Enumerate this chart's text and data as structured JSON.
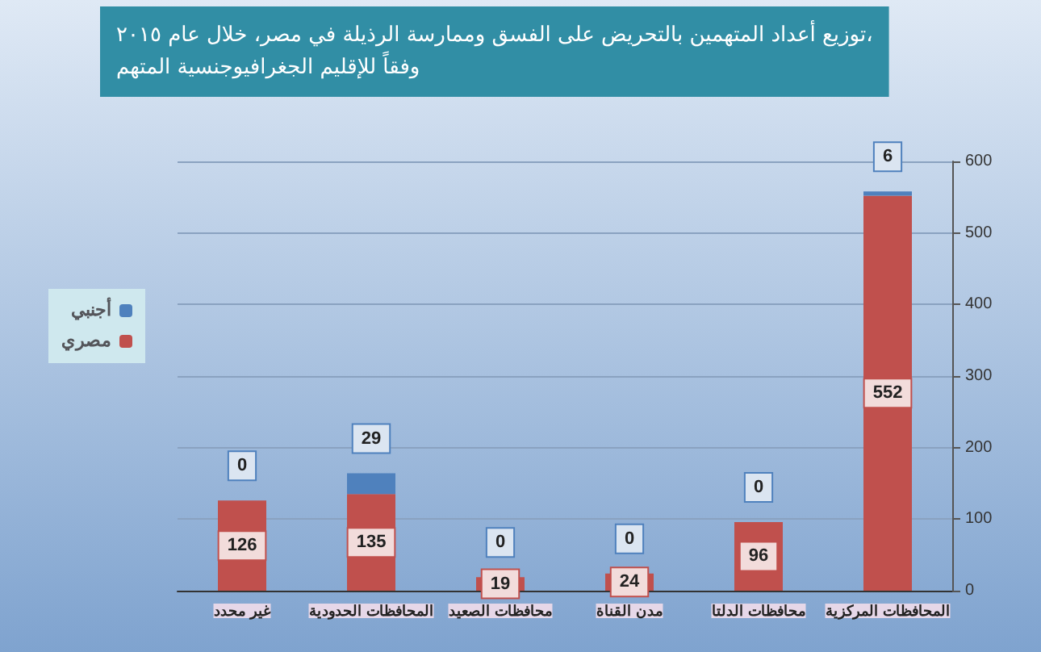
{
  "chart_data": {
    "type": "bar",
    "stacked": true,
    "title": "توزيع أعداد المتهمين بالتحريض على الفسق وممارسة الرذيلة في مصر، خلال عام ٢٠١٥،\nوفقاً للإقليم الجغرافيوجنسية المتهم",
    "categories": [
      "غير محدد",
      "المحافظات الحدودية",
      "محافظات الصعيد",
      "مدن القناة",
      "محافظات الدلتا",
      "المحافظات المركزية"
    ],
    "series": [
      {
        "name": "مصري",
        "color": "#c0504d",
        "values": [
          126,
          135,
          19,
          24,
          96,
          552
        ]
      },
      {
        "name": "أجنبي",
        "color": "#4f81bd",
        "values": [
          0,
          29,
          0,
          0,
          0,
          6
        ]
      }
    ],
    "ylim": [
      0,
      600
    ],
    "yticks": [
      0,
      100,
      200,
      300,
      400,
      500,
      600
    ],
    "grid": "y",
    "legend": "left",
    "data_labels": true
  }
}
